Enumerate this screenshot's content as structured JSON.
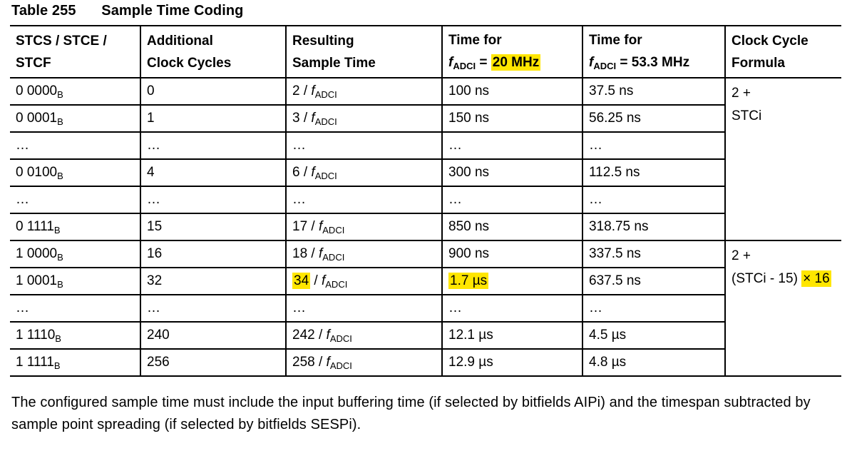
{
  "page": {
    "title": {
      "label": "Table 255",
      "caption": "Sample Time Coding"
    },
    "footer": "The configured sample time must include the input buffering time (if selected by bitfields AIPi) and the timespan subtracted by sample point spreading (if selected by bitfields SESPi)."
  },
  "colors": {
    "highlight": "#ffe600",
    "text": "#000000",
    "border": "#000000"
  },
  "table": {
    "columns": [
      [
        {
          "t": "STCS / STCE /\nSTCF"
        }
      ],
      [
        {
          "t": "Additional\nClock Cycles"
        }
      ],
      [
        {
          "t": "Resulting\nSample Time"
        }
      ],
      [
        {
          "t": "Time for\n"
        },
        {
          "t": "f",
          "i": true
        },
        {
          "t": "ADCI",
          "s": true
        },
        {
          "t": " = "
        },
        {
          "t": "20 MHz",
          "h": true
        }
      ],
      [
        {
          "t": "Time for\n"
        },
        {
          "t": "f",
          "i": true
        },
        {
          "t": "ADCI",
          "s": true
        },
        {
          "t": " = 53.3 MHz"
        }
      ],
      [
        {
          "t": "Clock Cycle\nFormula"
        }
      ]
    ],
    "rows": [
      {
        "cells": [
          [
            {
              "t": "0 0000"
            },
            {
              "t": "B",
              "s": true
            }
          ],
          [
            {
              "t": "0"
            }
          ],
          [
            {
              "t": "2 / "
            },
            {
              "t": "f",
              "i": true
            },
            {
              "t": "ADCI",
              "s": true
            }
          ],
          [
            {
              "t": "100 ns"
            }
          ],
          [
            {
              "t": "37.5 ns"
            }
          ]
        ],
        "formula": {
          "rowspan": 6,
          "segments": [
            {
              "t": "2 +\nSTCi"
            }
          ]
        }
      },
      {
        "cells": [
          [
            {
              "t": "0 0001"
            },
            {
              "t": "B",
              "s": true
            }
          ],
          [
            {
              "t": "1"
            }
          ],
          [
            {
              "t": "3 / "
            },
            {
              "t": "f",
              "i": true
            },
            {
              "t": "ADCI",
              "s": true
            }
          ],
          [
            {
              "t": "150 ns"
            }
          ],
          [
            {
              "t": "56.25 ns"
            }
          ]
        ]
      },
      {
        "cells": [
          [
            {
              "t": "…"
            }
          ],
          [
            {
              "t": "…"
            }
          ],
          [
            {
              "t": "…"
            }
          ],
          [
            {
              "t": "…"
            }
          ],
          [
            {
              "t": "…"
            }
          ]
        ]
      },
      {
        "cells": [
          [
            {
              "t": "0 0100"
            },
            {
              "t": "B",
              "s": true
            }
          ],
          [
            {
              "t": "4"
            }
          ],
          [
            {
              "t": "6 / "
            },
            {
              "t": "f",
              "i": true
            },
            {
              "t": "ADCI",
              "s": true
            }
          ],
          [
            {
              "t": "300 ns"
            }
          ],
          [
            {
              "t": "112.5 ns"
            }
          ]
        ]
      },
      {
        "cells": [
          [
            {
              "t": "…"
            }
          ],
          [
            {
              "t": "…"
            }
          ],
          [
            {
              "t": "…"
            }
          ],
          [
            {
              "t": "…"
            }
          ],
          [
            {
              "t": "…"
            }
          ]
        ]
      },
      {
        "cells": [
          [
            {
              "t": "0 1111"
            },
            {
              "t": "B",
              "s": true
            }
          ],
          [
            {
              "t": "15"
            }
          ],
          [
            {
              "t": "17 / "
            },
            {
              "t": "f",
              "i": true
            },
            {
              "t": "ADCI",
              "s": true
            }
          ],
          [
            {
              "t": "850 ns"
            }
          ],
          [
            {
              "t": "318.75 ns"
            }
          ]
        ]
      },
      {
        "cells": [
          [
            {
              "t": "1 0000"
            },
            {
              "t": "B",
              "s": true
            }
          ],
          [
            {
              "t": "16"
            }
          ],
          [
            {
              "t": "18 / "
            },
            {
              "t": "f",
              "i": true
            },
            {
              "t": "ADCI",
              "s": true
            }
          ],
          [
            {
              "t": "900 ns"
            }
          ],
          [
            {
              "t": "337.5 ns"
            }
          ]
        ],
        "formula": {
          "rowspan": 5,
          "segments": [
            {
              "t": "2 +\n(STCi - 15) "
            },
            {
              "t": "× 16",
              "h": true
            }
          ]
        }
      },
      {
        "cells": [
          [
            {
              "t": "1 0001"
            },
            {
              "t": "B",
              "s": true
            }
          ],
          [
            {
              "t": "32"
            }
          ],
          [
            {
              "t": "34",
              "h": true
            },
            {
              "t": " / "
            },
            {
              "t": "f",
              "i": true
            },
            {
              "t": "ADCI",
              "s": true
            }
          ],
          [
            {
              "t": "1.7 µs",
              "h": true
            }
          ],
          [
            {
              "t": "637.5 ns"
            }
          ]
        ]
      },
      {
        "cells": [
          [
            {
              "t": "…"
            }
          ],
          [
            {
              "t": "…"
            }
          ],
          [
            {
              "t": "…"
            }
          ],
          [
            {
              "t": "…"
            }
          ],
          [
            {
              "t": "…"
            }
          ]
        ]
      },
      {
        "cells": [
          [
            {
              "t": "1 1110"
            },
            {
              "t": "B",
              "s": true
            }
          ],
          [
            {
              "t": "240"
            }
          ],
          [
            {
              "t": "242 / "
            },
            {
              "t": "f",
              "i": true
            },
            {
              "t": "ADCI",
              "s": true
            }
          ],
          [
            {
              "t": "12.1 µs"
            }
          ],
          [
            {
              "t": "4.5 µs"
            }
          ]
        ]
      },
      {
        "cells": [
          [
            {
              "t": "1 1111"
            },
            {
              "t": "B",
              "s": true
            }
          ],
          [
            {
              "t": "256"
            }
          ],
          [
            {
              "t": "258 / "
            },
            {
              "t": "f",
              "i": true
            },
            {
              "t": "ADCI",
              "s": true
            }
          ],
          [
            {
              "t": "12.9 µs"
            }
          ],
          [
            {
              "t": "4.8 µs"
            }
          ]
        ]
      }
    ]
  }
}
